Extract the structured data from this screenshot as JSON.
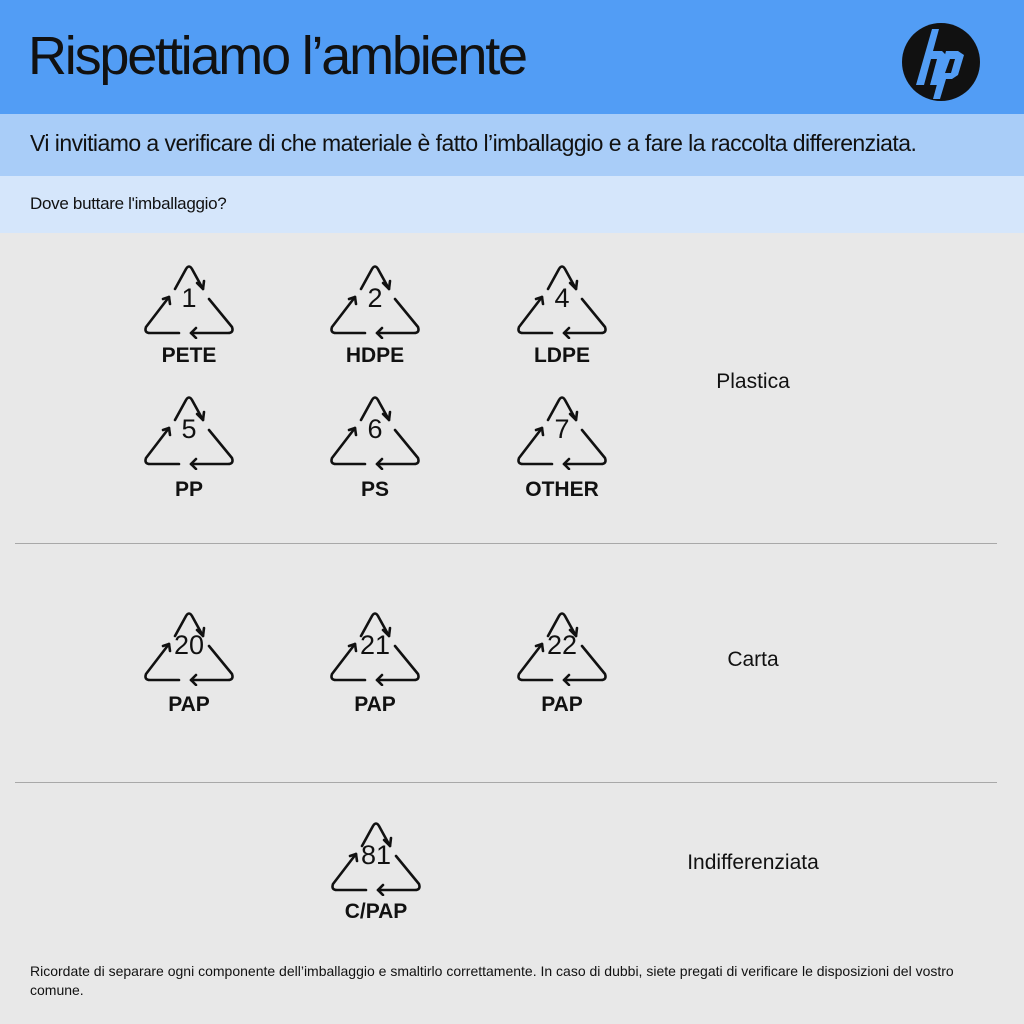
{
  "header": {
    "title": "Rispettiamo l’ambiente",
    "logo": "hp",
    "color": "#529df5"
  },
  "subtitle": "Vi invitiamo a verificare di che materiale è fatto l’imballaggio e a fare la raccolta differenziata.",
  "question": "Dove buttare l'imballaggio?",
  "sections": [
    {
      "category": "Plastica",
      "symbols": [
        {
          "number": "1",
          "label": "PETE"
        },
        {
          "number": "2",
          "label": "HDPE"
        },
        {
          "number": "4",
          "label": "LDPE"
        },
        {
          "number": "5",
          "label": "PP"
        },
        {
          "number": "6",
          "label": "PS"
        },
        {
          "number": "7",
          "label": "OTHER"
        }
      ]
    },
    {
      "category": "Carta",
      "symbols": [
        {
          "number": "20",
          "label": "PAP"
        },
        {
          "number": "21",
          "label": "PAP"
        },
        {
          "number": "22",
          "label": "PAP"
        }
      ]
    },
    {
      "category": "Indifferenziata",
      "symbols": [
        {
          "number": "81",
          "label": "C/PAP"
        }
      ]
    }
  ],
  "footer": "Ricordate di separare ogni componente dell’imballaggio e smaltirlo correttamente. In caso di dubbi, siete pregati di verificare le disposizioni del vostro comune."
}
